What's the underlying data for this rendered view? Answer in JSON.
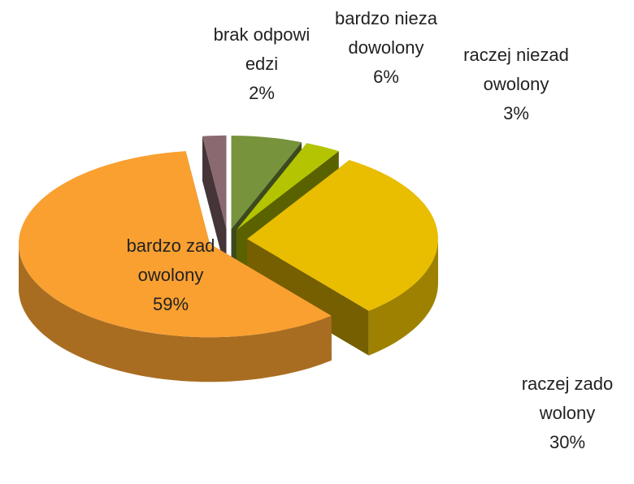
{
  "chart_data": {
    "type": "pie",
    "categories": [
      "bardzo niezadowolony",
      "raczej niezadowolony",
      "raczej zadowolony",
      "bardzo zadowolony",
      "brak odpowiedzi"
    ],
    "values": [
      6,
      3,
      30,
      59,
      2
    ],
    "value_labels": [
      "6%",
      "3%",
      "30%",
      "59%",
      "2%"
    ],
    "colors": [
      "#77933c",
      "#b4c400",
      "#e9bd00",
      "#f9a031",
      "#8a6a70"
    ]
  }
}
